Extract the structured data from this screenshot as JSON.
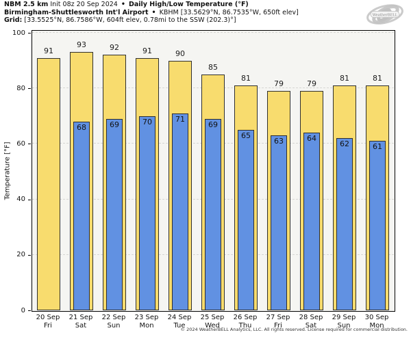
{
  "header": {
    "model": "NBM 2.5 km",
    "init": "Init 08z 20 Sep 2024",
    "bullet1": "•",
    "product": "Daily High/Low Temperature (°F)",
    "station": "Birmingham-Shuttlesworth Int'l Airport",
    "bullet2": "•",
    "station_detail": "KBHM [33.5629°N, 86.7535°W, 650ft elev]",
    "grid_label": "Grid:",
    "grid_detail": "[33.5525°N, 86.7586°W, 604ft elev, 0.78mi to the SSW (202.3)°]"
  },
  "logo": {
    "text": "WeatherBELL"
  },
  "chart_data": {
    "type": "bar",
    "title": "NBM 2.5 km Daily High/Low Temperature (°F) — Birmingham-Shuttlesworth Int'l Airport (KBHM)",
    "ylabel": "Temperature [°F]",
    "ylim": [
      0,
      100
    ],
    "yticks": [
      0,
      20,
      40,
      60,
      80,
      100
    ],
    "grid": true,
    "legend": "none",
    "categories": [
      {
        "date": "20 Sep",
        "day": "Fri"
      },
      {
        "date": "21 Sep",
        "day": "Sat"
      },
      {
        "date": "22 Sep",
        "day": "Sun"
      },
      {
        "date": "23 Sep",
        "day": "Mon"
      },
      {
        "date": "24 Sep",
        "day": "Tue"
      },
      {
        "date": "25 Sep",
        "day": "Wed"
      },
      {
        "date": "26 Sep",
        "day": "Thu"
      },
      {
        "date": "27 Sep",
        "day": "Fri"
      },
      {
        "date": "28 Sep",
        "day": "Sat"
      },
      {
        "date": "29 Sep",
        "day": "Sun"
      },
      {
        "date": "30 Sep",
        "day": "Mon"
      }
    ],
    "series": [
      {
        "name": "Daily High",
        "color": "#f8dc6e",
        "edge_color": "#2e2e2e",
        "values": [
          91,
          93,
          92,
          91,
          90,
          85,
          81,
          79,
          79,
          81,
          81
        ]
      },
      {
        "name": "Daily Low",
        "color": "#6191e2",
        "edge_color": "#2e2e2e",
        "values": [
          null,
          68,
          69,
          70,
          71,
          69,
          65,
          63,
          64,
          62,
          61
        ]
      }
    ]
  },
  "footer": "© 2024 WeatherBELL Analytics, LLC. All rights reserved. License required for commercial distribution."
}
